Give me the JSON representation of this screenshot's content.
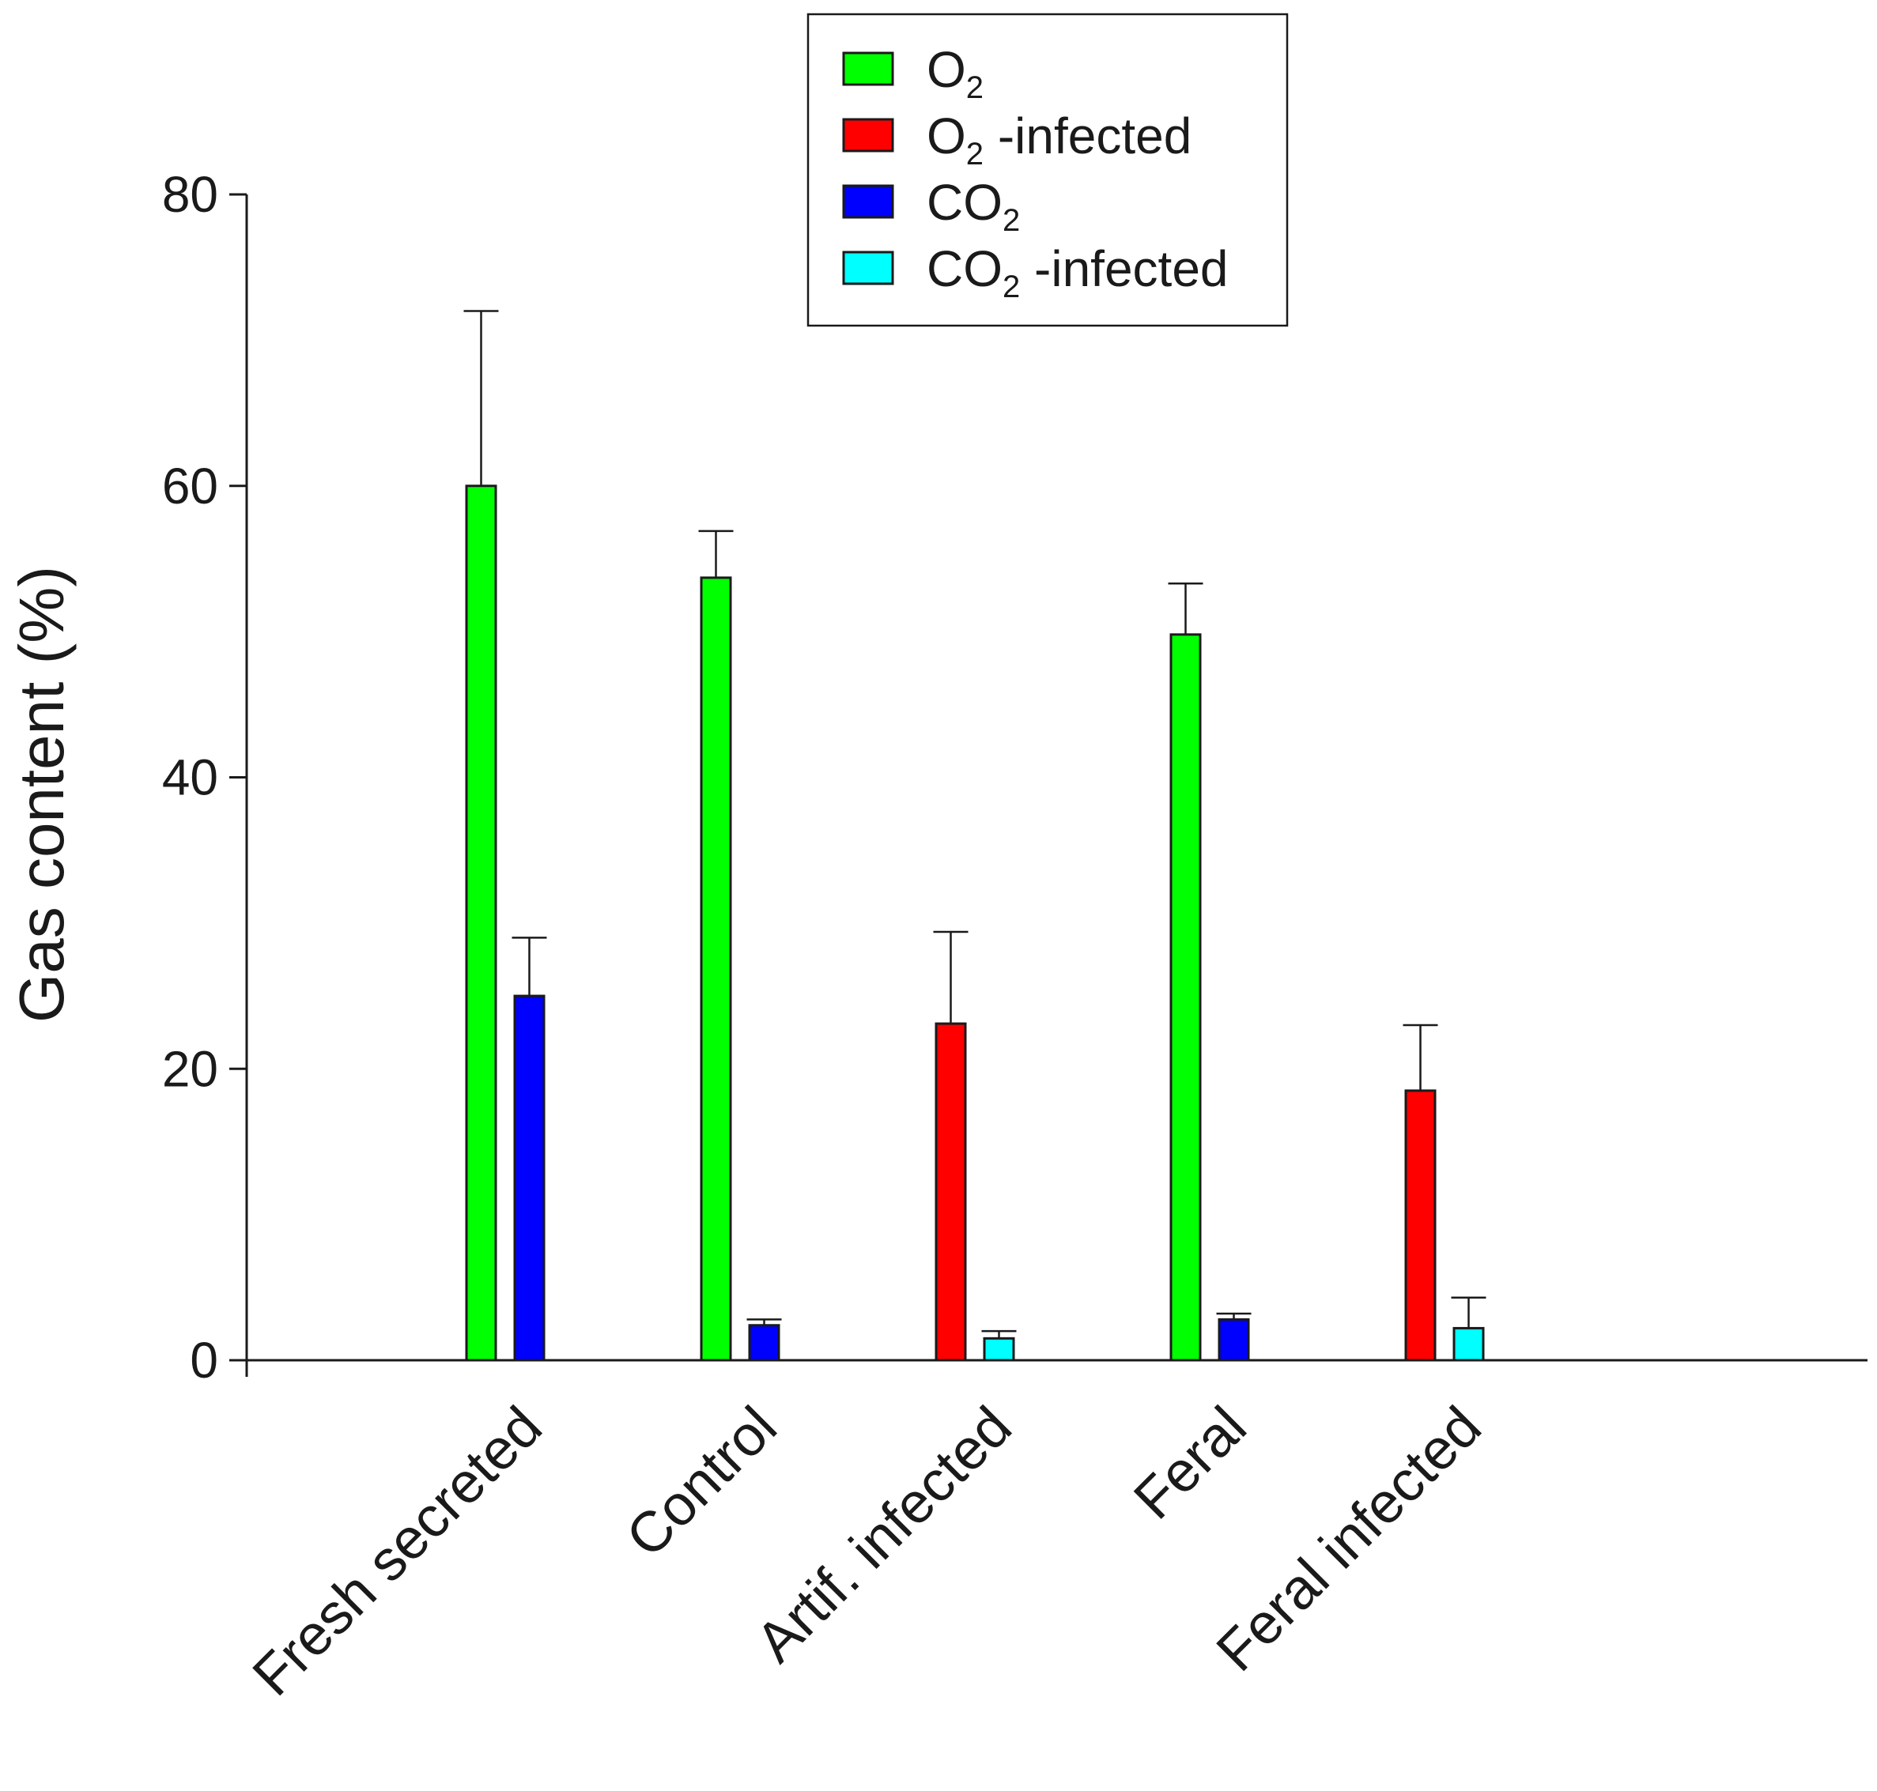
{
  "chart_data": {
    "type": "bar",
    "title": "",
    "xlabel": "",
    "ylabel": "Gas content (%)",
    "ylim": [
      0,
      80
    ],
    "yticks": [
      0,
      20,
      40,
      60,
      80
    ],
    "grid": false,
    "legend_position": "top-center",
    "categories": [
      "Fresh secreted",
      "Control",
      "Artif. infected",
      "Feral",
      "Feral infected"
    ],
    "series": [
      {
        "name": "O2",
        "label_main": "O",
        "label_sub": "2",
        "label_rest": "",
        "color": "#00ff00",
        "values": [
          60,
          53.7,
          null,
          49.8,
          null
        ],
        "errors": [
          12,
          3.2,
          null,
          3.5,
          null
        ]
      },
      {
        "name": "O2 -infected",
        "label_main": "O",
        "label_sub": "2",
        "label_rest": " -infected",
        "color": "#ff0000",
        "values": [
          null,
          null,
          23.1,
          null,
          18.5
        ],
        "errors": [
          null,
          null,
          6.3,
          null,
          4.5
        ]
      },
      {
        "name": "CO2",
        "label_main": "CO",
        "label_sub": "2",
        "label_rest": "",
        "color": "#0000ff",
        "values": [
          25,
          2.4,
          null,
          2.8,
          null
        ],
        "errors": [
          4,
          0.4,
          null,
          0.4,
          null
        ]
      },
      {
        "name": "CO2 -infected",
        "label_main": "CO",
        "label_sub": "2",
        "label_rest": " -infected",
        "color": "#00ffff",
        "values": [
          null,
          null,
          1.5,
          null,
          2.2
        ],
        "errors": [
          null,
          null,
          0.5,
          null,
          2.1
        ]
      }
    ],
    "bars": [
      {
        "category": 0,
        "series": 0,
        "slot": 0
      },
      {
        "category": 0,
        "series": 2,
        "slot": 1
      },
      {
        "category": 1,
        "series": 0,
        "slot": 0
      },
      {
        "category": 1,
        "series": 2,
        "slot": 1
      },
      {
        "category": 2,
        "series": 1,
        "slot": 0
      },
      {
        "category": 2,
        "series": 3,
        "slot": 1
      },
      {
        "category": 3,
        "series": 0,
        "slot": 0
      },
      {
        "category": 3,
        "series": 2,
        "slot": 1
      },
      {
        "category": 4,
        "series": 1,
        "slot": 0
      },
      {
        "category": 4,
        "series": 3,
        "slot": 1
      }
    ]
  }
}
